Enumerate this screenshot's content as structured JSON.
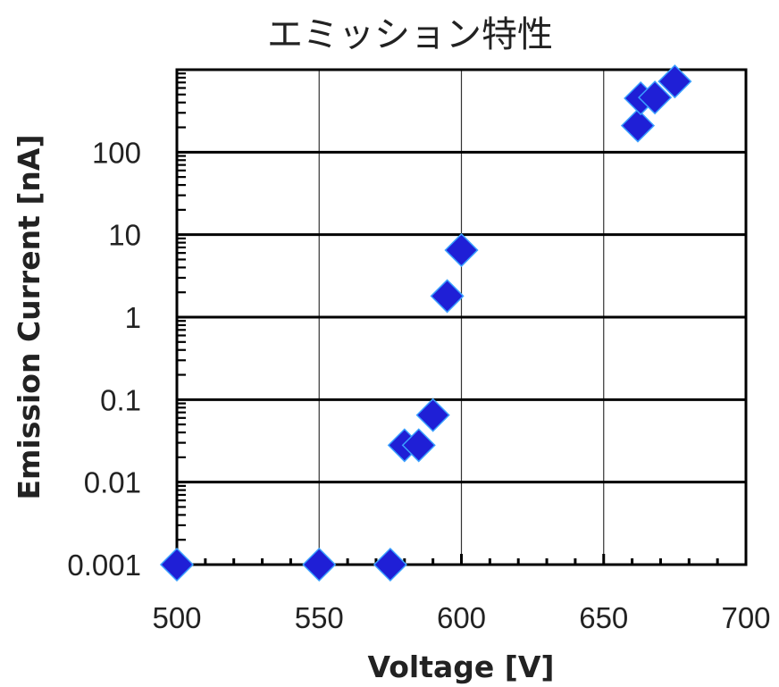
{
  "chart_data": {
    "type": "scatter",
    "title": "エミッション特性",
    "xlabel": "Voltage [V]",
    "ylabel": "Emission Current [nA]",
    "xlim": [
      500,
      700
    ],
    "ylim": [
      0.001,
      1000
    ],
    "yscale": "log",
    "grid": true,
    "x_ticks": [
      500,
      550,
      600,
      650,
      700
    ],
    "x_tick_labels": [
      "500",
      "550",
      "600",
      "650",
      "700"
    ],
    "y_ticks": [
      0.001,
      0.01,
      0.1,
      1,
      10,
      100
    ],
    "y_tick_labels": [
      "0.001",
      "0.01",
      "0.1",
      "1",
      "10",
      "100"
    ],
    "marker": "diamond",
    "marker_color": "#1f1fd6",
    "marker_edge_color": "#3aa0ff",
    "series": [
      {
        "points": [
          {
            "x": 500,
            "y": 0.001
          },
          {
            "x": 550,
            "y": 0.001
          },
          {
            "x": 575,
            "y": 0.001
          },
          {
            "x": 580,
            "y": 0.028
          },
          {
            "x": 585,
            "y": 0.028
          },
          {
            "x": 590,
            "y": 0.065
          },
          {
            "x": 595,
            "y": 1.8
          },
          {
            "x": 600,
            "y": 6.5
          },
          {
            "x": 662,
            "y": 210
          },
          {
            "x": 663,
            "y": 450
          },
          {
            "x": 668,
            "y": 460
          },
          {
            "x": 675,
            "y": 720
          }
        ]
      }
    ]
  }
}
